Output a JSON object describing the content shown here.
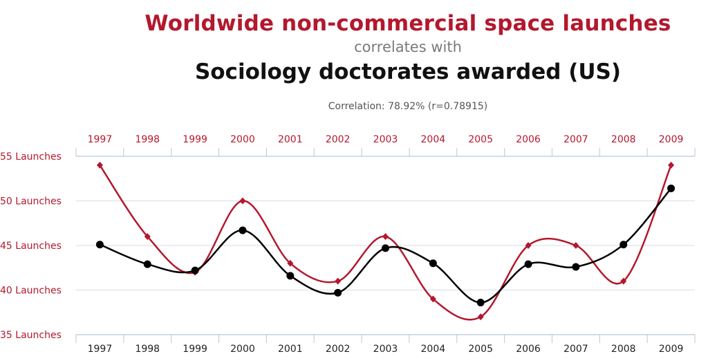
{
  "header": {
    "title_series1": "Worldwide non-commercial space launches",
    "connector": "correlates with",
    "title_series2": "Sociology doctorates awarded (US)",
    "correlation": "Correlation: 78.92% (r=0.78915)"
  },
  "colors": {
    "series1": "#b3182d",
    "series2": "#000000",
    "grid": "#d6dde8",
    "axis": "#b8c7d9"
  },
  "chart_data": {
    "type": "line",
    "x": [
      "1997",
      "1998",
      "1999",
      "2000",
      "2001",
      "2002",
      "2003",
      "2004",
      "2005",
      "2006",
      "2007",
      "2008",
      "2009"
    ],
    "y_tick_labels": [
      "55 Launches",
      "50 Launches",
      "45 Launches",
      "40 Launches",
      "35 Launches"
    ],
    "y_ticks": [
      55,
      50,
      45,
      40,
      35
    ],
    "ylim": [
      35,
      55
    ],
    "grid": true,
    "series": [
      {
        "name": "Worldwide non-commercial space launches",
        "marker": "diamond",
        "values": [
          54,
          46,
          42,
          50,
          43,
          41,
          46,
          39,
          37,
          45,
          45,
          41,
          54
        ]
      },
      {
        "name": "Sociology doctorates awarded (US)",
        "marker": "circle",
        "values": [
          45.1,
          42.9,
          42.2,
          46.7,
          41.6,
          39.7,
          44.7,
          43.0,
          38.6,
          42.9,
          42.6,
          45.1,
          51.4
        ]
      }
    ]
  }
}
